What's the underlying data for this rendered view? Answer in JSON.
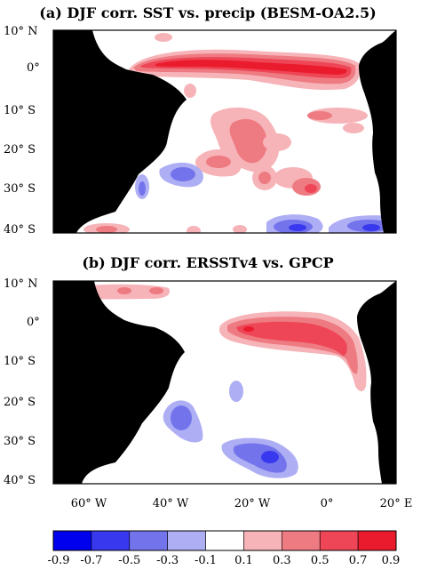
{
  "panels": [
    {
      "id": "a",
      "title": "(a) DJF corr. SST vs. precip (BESM-OA2.5)",
      "lat_labels": [
        "10° N",
        "0°",
        "10° S",
        "20° S",
        "30° S",
        "40° S"
      ]
    },
    {
      "id": "b",
      "title": "(b) DJF corr. ERSSTv4 vs. GPCP",
      "lat_labels": [
        "10° N",
        "0°",
        "10° S",
        "20° S",
        "30° S",
        "40° S"
      ]
    }
  ],
  "lon_labels": [
    "60° W",
    "40° W",
    "20° W",
    "0°",
    "20° E"
  ],
  "colorbar": {
    "ticks": [
      "-0.9",
      "-0.7",
      "-0.5",
      "-0.3",
      "-0.1",
      "0.1",
      "0.3",
      "0.5",
      "0.7",
      "0.9"
    ],
    "colors": [
      "#0000ee",
      "#3838ee",
      "#7373ec",
      "#aeaef4",
      "#ffffff",
      "#f6b4b8",
      "#ee7a82",
      "#ee4656",
      "#ea1b2c"
    ]
  },
  "map_extent": {
    "lon": [
      -70,
      22
    ],
    "lat": [
      -41,
      11
    ]
  }
}
